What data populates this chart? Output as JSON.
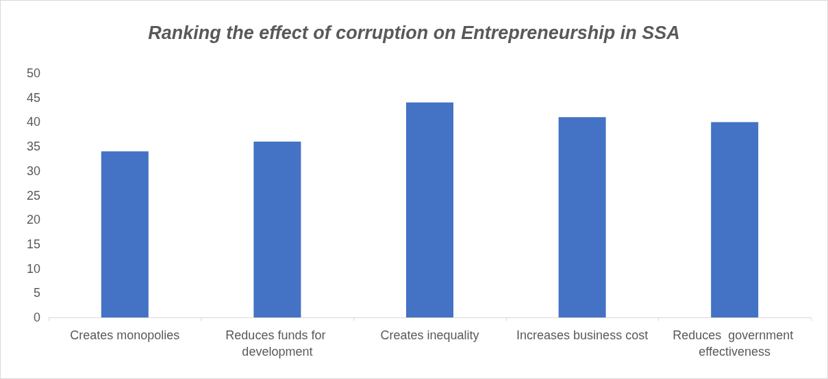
{
  "chart_data": {
    "type": "bar",
    "title": "Ranking the effect of corruption on Entrepreneurship in SSA",
    "categories": [
      "Creates monopolies",
      "Reduces funds for development",
      "Creates inequality",
      "Increases business cost",
      "Reduces  government effectiveness"
    ],
    "values": [
      34,
      36,
      44,
      41,
      40
    ],
    "color": "#4472c4",
    "ylim": [
      0,
      50
    ],
    "yticks": [
      0,
      5,
      10,
      15,
      20,
      25,
      30,
      35,
      40,
      45,
      50
    ],
    "grid": false
  }
}
